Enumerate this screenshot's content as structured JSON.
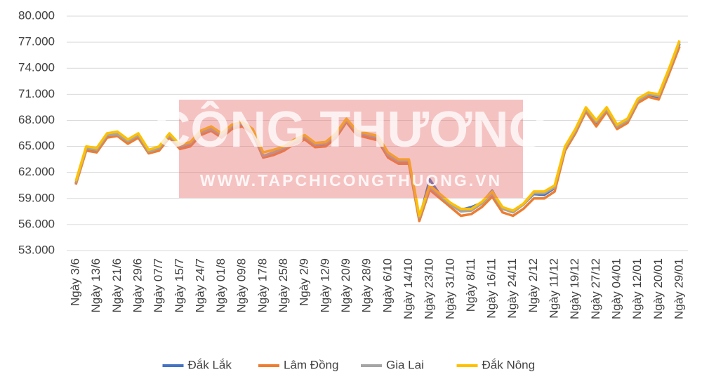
{
  "chart_data": {
    "type": "line",
    "categories": [
      "Ngày 3/6",
      null,
      "Ngày 13/6",
      null,
      "Ngày 21/6",
      null,
      "Ngày 29/6",
      null,
      "Ngày 07/7",
      null,
      "Ngày 15/7",
      null,
      "Ngày 24/7",
      null,
      "Ngày 01/8",
      null,
      "Ngày 09/8",
      null,
      "Ngày 17/8",
      null,
      "Ngày 25/8",
      null,
      "Ngày 2/9",
      null,
      "Ngày 12/9",
      null,
      "Ngày 20/9",
      null,
      "Ngày 28/9",
      null,
      "Ngày 6/10",
      null,
      "Ngày 14/10",
      null,
      "Ngày 23/10",
      null,
      "Ngày 31/10",
      null,
      "Ngày 8/11",
      null,
      "Ngày 16/11",
      null,
      "Ngày 24/11",
      null,
      "Ngày 2/12",
      null,
      "Ngày 11/12",
      null,
      "Ngày 19/12",
      null,
      "Ngày 27/12",
      null,
      "Ngày 04/01",
      null,
      "Ngày 12/01",
      null,
      "Ngày 20/01",
      null,
      "Ngày 29/01"
    ],
    "series": [
      {
        "name": "Đắk Lắk",
        "color": "#4472c4",
        "values": [
          60700,
          64700,
          64500,
          66200,
          66300,
          65500,
          66200,
          64300,
          64700,
          66200,
          64900,
          65200,
          66500,
          66900,
          66200,
          67200,
          67500,
          66700,
          63800,
          64200,
          64700,
          65500,
          66000,
          65100,
          65200,
          66200,
          67900,
          66500,
          66200,
          65900,
          63900,
          63200,
          63200,
          56600,
          61200,
          59400,
          58400,
          57700,
          58000,
          58500,
          59900,
          57800,
          57500,
          58300,
          59500,
          59400,
          60200,
          64700,
          66700,
          69200,
          67600,
          69200,
          67200,
          67900,
          70200,
          70900,
          70600,
          73600,
          76800
        ]
      },
      {
        "name": "Lâm Đồng",
        "color": "#ed7d31",
        "values": [
          60600,
          64500,
          64300,
          66000,
          66200,
          65300,
          66000,
          64200,
          64500,
          66000,
          64700,
          65000,
          66300,
          66800,
          66000,
          67000,
          67300,
          66500,
          63700,
          64000,
          64500,
          65300,
          65800,
          64900,
          65000,
          66000,
          67800,
          66300,
          66000,
          65700,
          63700,
          63000,
          63000,
          56400,
          60000,
          59000,
          58000,
          57000,
          57200,
          58000,
          59200,
          57400,
          57000,
          57800,
          59000,
          59000,
          59800,
          64500,
          66500,
          69000,
          67300,
          69000,
          67000,
          67700,
          70000,
          70700,
          70400,
          73400,
          76500
        ]
      },
      {
        "name": "Gia Lai",
        "color": "#a5a5a5",
        "values": [
          60800,
          64800,
          64600,
          66300,
          66400,
          65600,
          66300,
          64400,
          64800,
          66300,
          65000,
          65300,
          66600,
          67000,
          66300,
          67300,
          67600,
          66800,
          63900,
          64300,
          64800,
          65600,
          66100,
          65200,
          65300,
          66300,
          68000,
          66600,
          66300,
          66000,
          64000,
          63300,
          63300,
          56800,
          60300,
          59300,
          58300,
          57500,
          57600,
          58400,
          59600,
          57800,
          57400,
          58300,
          59600,
          59600,
          60300,
          64800,
          66800,
          69300,
          67800,
          69300,
          67300,
          68000,
          70300,
          71000,
          70800,
          73800,
          77000
        ]
      },
      {
        "name": "Đắk Nông",
        "color": "#ffc000",
        "values": [
          61000,
          65000,
          64800,
          66500,
          66700,
          65800,
          66500,
          64600,
          65000,
          66500,
          65200,
          65500,
          66800,
          67300,
          66500,
          67500,
          67800,
          67000,
          64300,
          64600,
          65000,
          65800,
          66300,
          65400,
          65500,
          66500,
          68200,
          66800,
          66500,
          66200,
          64300,
          63500,
          63500,
          57000,
          60500,
          59500,
          58500,
          57800,
          57800,
          58600,
          59800,
          58000,
          57600,
          58400,
          59800,
          59800,
          60500,
          65000,
          67000,
          69500,
          68000,
          69500,
          67500,
          68200,
          70500,
          71200,
          71000,
          74000,
          77200
        ]
      }
    ],
    "ylim": [
      53000,
      80000
    ],
    "yticks": [
      {
        "value": 53000,
        "label": "53.000"
      },
      {
        "value": 56000,
        "label": "56.000"
      },
      {
        "value": 59000,
        "label": "59.000"
      },
      {
        "value": 62000,
        "label": "62.000"
      },
      {
        "value": 65000,
        "label": "65.000"
      },
      {
        "value": 68000,
        "label": "68.000"
      },
      {
        "value": 71000,
        "label": "71.000"
      },
      {
        "value": 74000,
        "label": "74.000"
      },
      {
        "value": 77000,
        "label": "77.000"
      },
      {
        "value": 80000,
        "label": "80.000"
      }
    ],
    "grid": true,
    "legend": "bottom",
    "watermark": {
      "title": "CÔNG THƯƠNG",
      "url": "WWW.TAPCHICONGTHUONG.VN"
    }
  }
}
